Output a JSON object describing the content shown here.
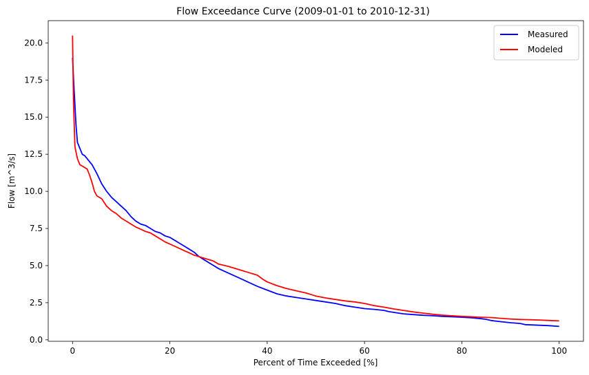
{
  "chart_data": {
    "type": "line",
    "title": "Flow Exceedance Curve (2009-01-01 to 2010-12-31)",
    "xlabel": "Percent of Time Exceeded [%]",
    "ylabel": "Flow [m^3/s]",
    "xlim": [
      -5,
      105
    ],
    "ylim": [
      -0.1,
      21.5
    ],
    "xticks": [
      0,
      20,
      40,
      60,
      80,
      100
    ],
    "xtick_labels": [
      "0",
      "20",
      "40",
      "60",
      "80",
      "100"
    ],
    "yticks": [
      0.0,
      2.5,
      5.0,
      7.5,
      10.0,
      12.5,
      15.0,
      17.5,
      20.0
    ],
    "ytick_labels": [
      "0.0",
      "2.5",
      "5.0",
      "7.5",
      "10.0",
      "12.5",
      "15.0",
      "17.5",
      "20.0"
    ],
    "grid": false,
    "legend_position": "top-right",
    "series": [
      {
        "name": "Measured",
        "color": "#0000ff",
        "x": [
          0,
          0.3,
          0.7,
          1,
          1.5,
          2,
          2.5,
          3,
          3.5,
          4,
          5,
          6,
          7,
          8,
          9,
          10,
          11,
          12,
          13,
          14,
          15,
          16,
          17,
          18,
          19,
          20,
          21,
          22,
          23,
          24,
          25,
          26,
          27,
          28,
          29,
          30,
          32,
          34,
          36,
          38,
          40,
          42,
          44,
          46,
          48,
          50,
          52,
          54,
          56,
          58,
          60,
          62,
          64,
          65,
          68,
          70,
          72,
          74,
          76,
          78,
          80,
          82,
          84,
          85,
          86,
          88,
          90,
          92,
          93,
          96,
          98,
          100
        ],
        "y": [
          19.0,
          17.0,
          14.5,
          13.3,
          12.9,
          12.5,
          12.4,
          12.2,
          12.0,
          11.8,
          11.2,
          10.5,
          10.0,
          9.6,
          9.3,
          9.0,
          8.7,
          8.3,
          8.0,
          7.8,
          7.7,
          7.5,
          7.3,
          7.2,
          7.0,
          6.9,
          6.7,
          6.5,
          6.3,
          6.1,
          5.9,
          5.6,
          5.4,
          5.2,
          5.0,
          4.8,
          4.5,
          4.2,
          3.9,
          3.6,
          3.35,
          3.1,
          2.95,
          2.85,
          2.75,
          2.65,
          2.55,
          2.45,
          2.3,
          2.2,
          2.1,
          2.05,
          1.98,
          1.9,
          1.75,
          1.7,
          1.65,
          1.62,
          1.58,
          1.55,
          1.52,
          1.48,
          1.42,
          1.38,
          1.3,
          1.22,
          1.15,
          1.1,
          1.02,
          0.98,
          0.95,
          0.9
        ]
      },
      {
        "name": "Modeled",
        "color": "#ff0000",
        "x": [
          0,
          0.2,
          0.5,
          1,
          1.5,
          2,
          3,
          3.5,
          4,
          4.5,
          5,
          6,
          7,
          8,
          9,
          10,
          11,
          12,
          13,
          14,
          15,
          16,
          17,
          18,
          19,
          20,
          21,
          22,
          23,
          24,
          25,
          26,
          27,
          28,
          29,
          30,
          32,
          34,
          36,
          38,
          39,
          40,
          42,
          44,
          46,
          48,
          50,
          52,
          54,
          56,
          58,
          60,
          62,
          64,
          66,
          68,
          70,
          72,
          74,
          76,
          78,
          80,
          82,
          84,
          86,
          88,
          90,
          92,
          94,
          96,
          98,
          100
        ],
        "y": [
          20.5,
          16.0,
          13.0,
          12.2,
          11.8,
          11.7,
          11.5,
          11.1,
          10.6,
          10.0,
          9.7,
          9.5,
          9.0,
          8.7,
          8.5,
          8.2,
          8.0,
          7.8,
          7.6,
          7.45,
          7.3,
          7.2,
          7.0,
          6.8,
          6.6,
          6.45,
          6.3,
          6.15,
          6.0,
          5.85,
          5.7,
          5.6,
          5.5,
          5.4,
          5.3,
          5.1,
          4.95,
          4.75,
          4.55,
          4.35,
          4.1,
          3.9,
          3.65,
          3.45,
          3.3,
          3.15,
          2.95,
          2.82,
          2.72,
          2.62,
          2.55,
          2.45,
          2.3,
          2.2,
          2.08,
          1.98,
          1.88,
          1.8,
          1.72,
          1.66,
          1.62,
          1.58,
          1.55,
          1.52,
          1.5,
          1.45,
          1.4,
          1.37,
          1.35,
          1.33,
          1.3,
          1.27
        ]
      }
    ]
  }
}
